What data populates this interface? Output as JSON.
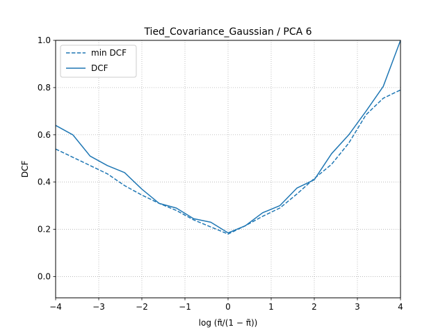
{
  "chart_data": {
    "type": "line",
    "title": "Tied_Covariance_Gaussian / PCA 6",
    "xlabel": "log (π̃/(1 − π̃))",
    "ylabel": "DCF",
    "xlim": [
      -4,
      4
    ],
    "ylim": [
      -0.09,
      1.0
    ],
    "xticks": [
      -4,
      -3,
      -2,
      -1,
      0,
      1,
      2,
      3,
      4
    ],
    "xtick_labels": [
      "−4",
      "−3",
      "−2",
      "−1",
      "0",
      "1",
      "2",
      "3",
      "4"
    ],
    "yticks": [
      0.0,
      0.2,
      0.4,
      0.6,
      0.8,
      1.0
    ],
    "ytick_labels": [
      "0.0",
      "0.2",
      "0.4",
      "0.6",
      "0.8",
      "1.0"
    ],
    "grid": true,
    "legend_position": "top-left",
    "series": [
      {
        "name": "min DCF",
        "style": "dashed",
        "color": "#1f77b4",
        "x": [
          -4,
          -3.6,
          -3.2,
          -2.8,
          -2.4,
          -2.0,
          -1.6,
          -1.2,
          -0.8,
          -0.4,
          0.0,
          0.4,
          0.8,
          1.2,
          1.6,
          2.0,
          2.4,
          2.8,
          3.2,
          3.6,
          4.0
        ],
        "y": [
          0.54,
          0.505,
          0.47,
          0.435,
          0.385,
          0.345,
          0.31,
          0.28,
          0.24,
          0.21,
          0.18,
          0.215,
          0.255,
          0.29,
          0.35,
          0.415,
          0.475,
          0.565,
          0.685,
          0.755,
          0.79
        ]
      },
      {
        "name": "DCF",
        "style": "solid",
        "color": "#1f77b4",
        "x": [
          -4,
          -3.6,
          -3.2,
          -2.8,
          -2.4,
          -2.0,
          -1.6,
          -1.2,
          -0.8,
          -0.4,
          0.0,
          0.4,
          0.8,
          1.2,
          1.6,
          2.0,
          2.4,
          2.8,
          3.2,
          3.6,
          4.0
        ],
        "y": [
          0.64,
          0.6,
          0.51,
          0.47,
          0.44,
          0.37,
          0.31,
          0.29,
          0.245,
          0.23,
          0.185,
          0.215,
          0.27,
          0.3,
          0.375,
          0.41,
          0.52,
          0.6,
          0.7,
          0.805,
          1.0
        ]
      }
    ]
  }
}
